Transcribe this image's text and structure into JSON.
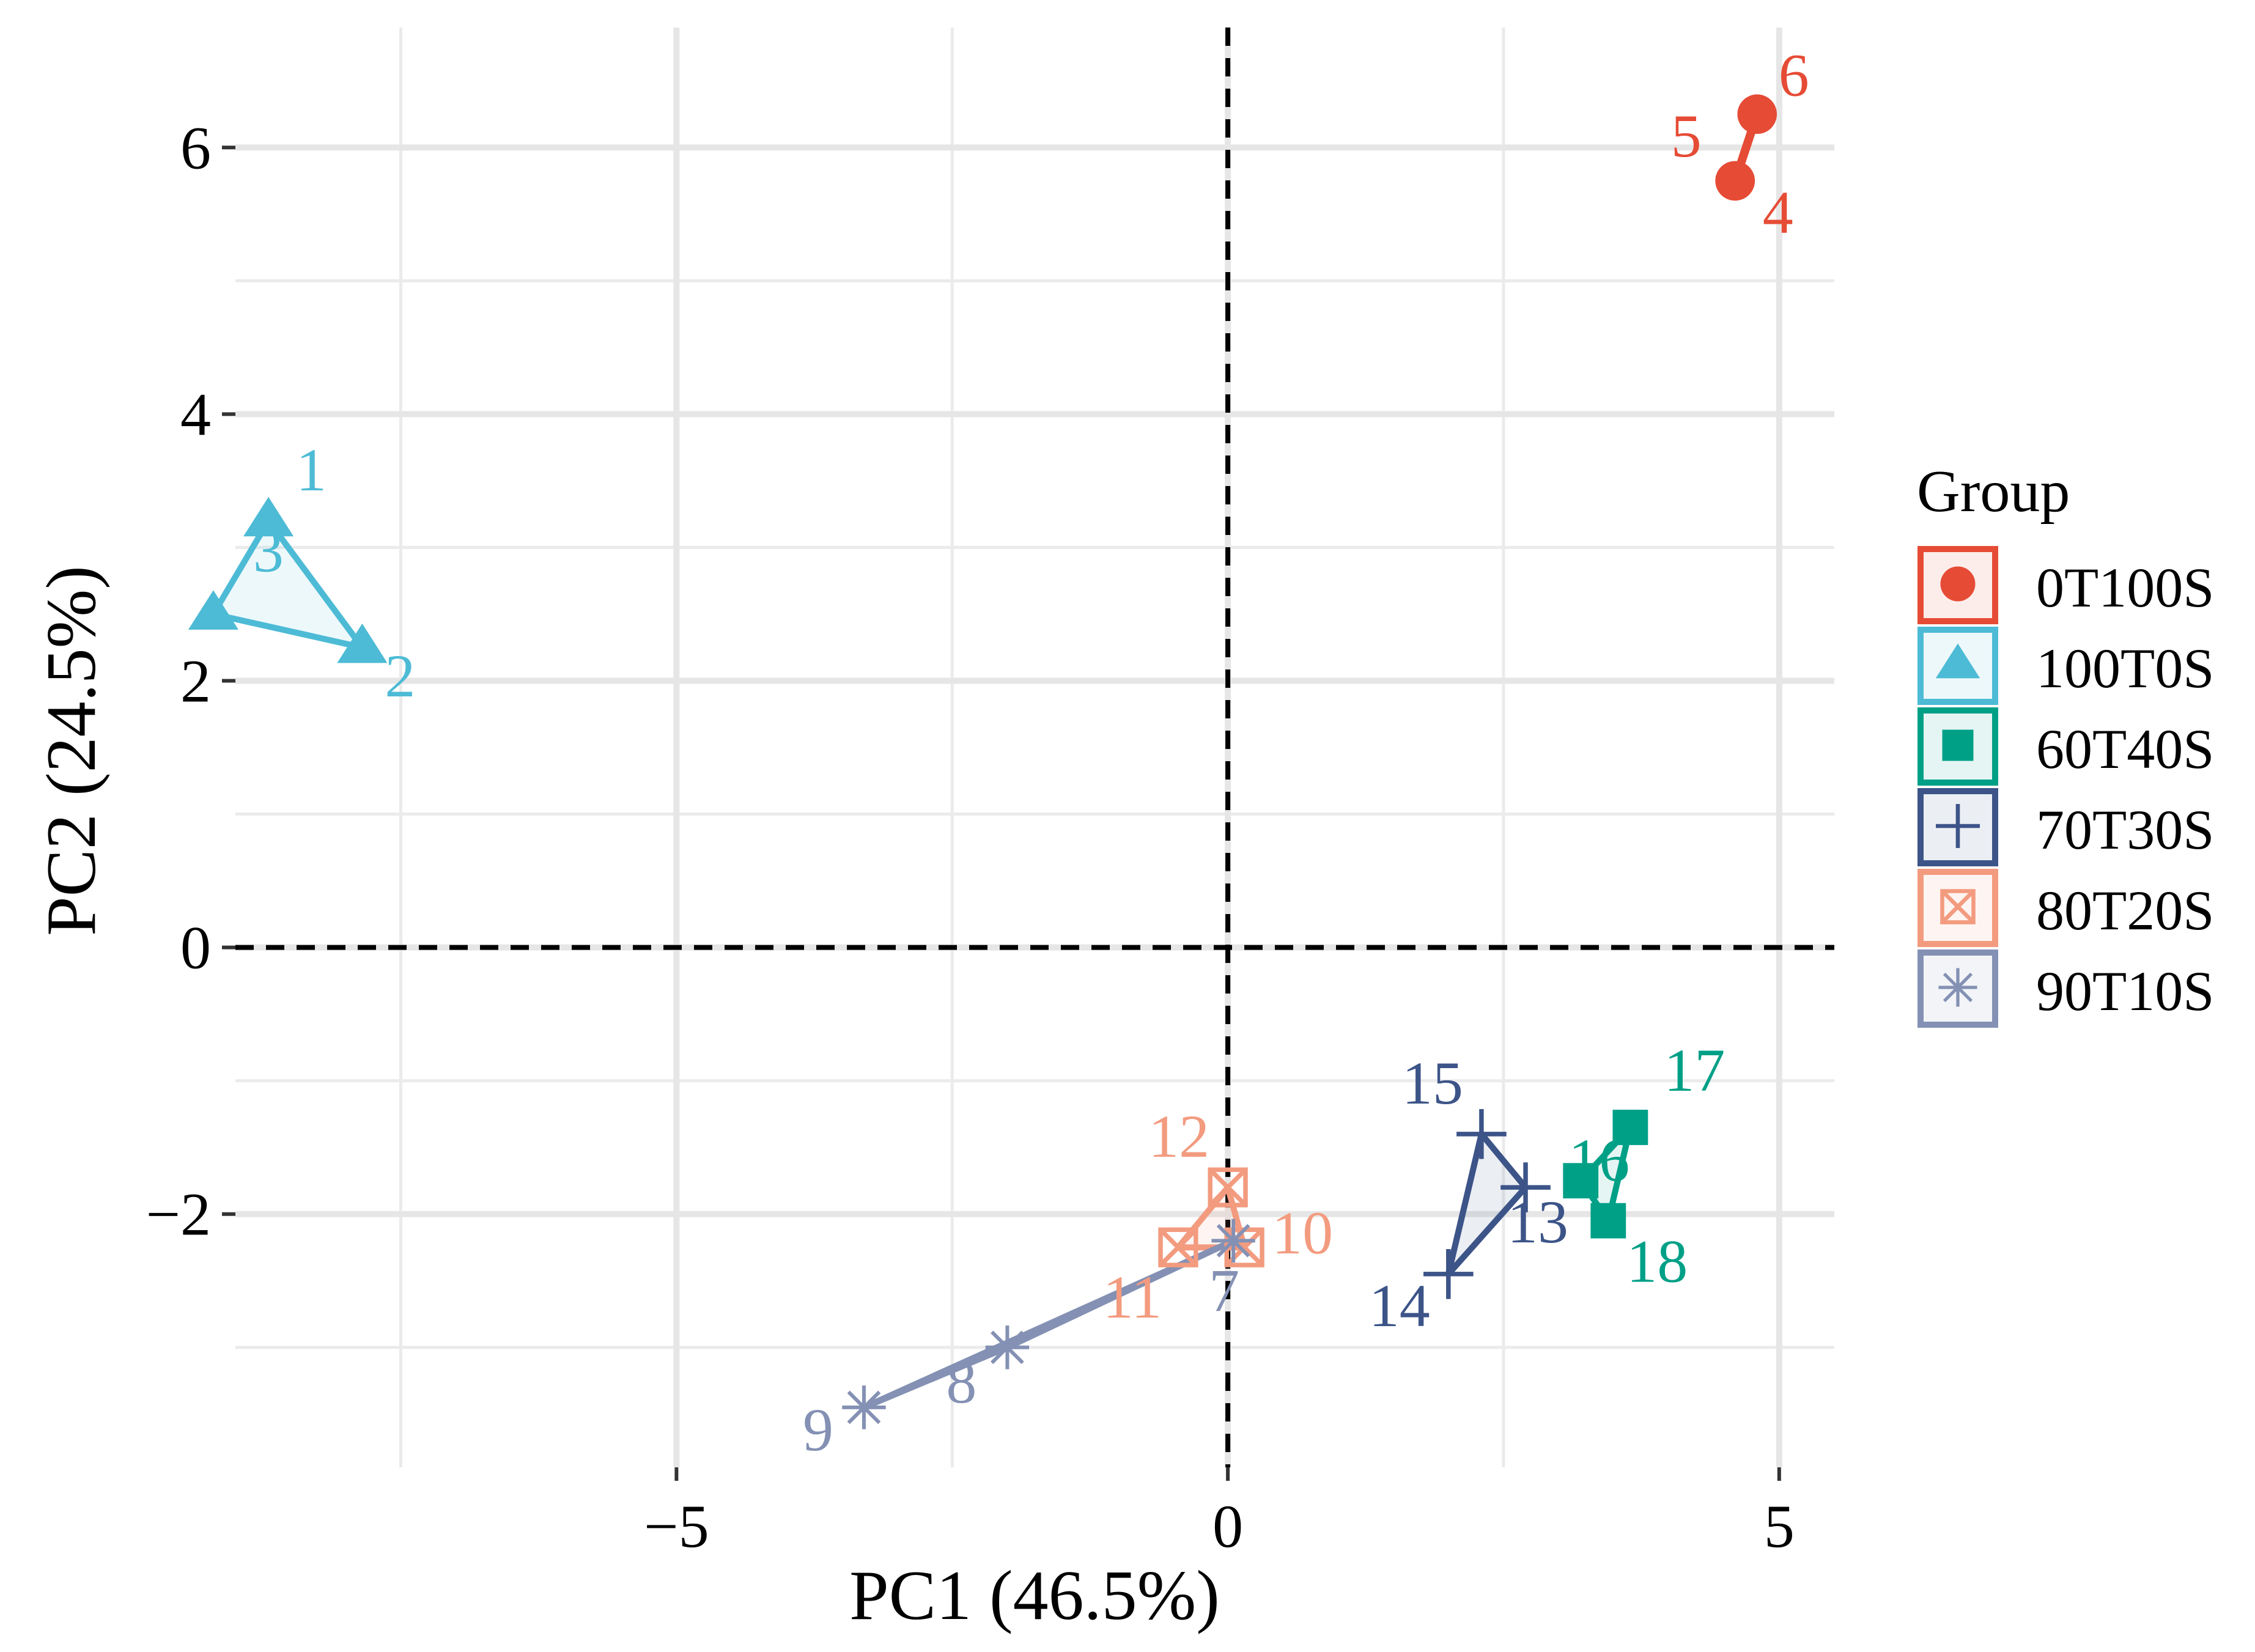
{
  "chart_data": {
    "type": "scatter",
    "title": "",
    "xlabel": "PC1 (46.5%)",
    "ylabel": "PC2 (24.5%)",
    "xlim": [
      -9.0,
      5.5
    ],
    "ylim": [
      -3.9,
      6.9
    ],
    "x_major_ticks": [
      -5,
      0,
      5
    ],
    "x_minor_grid": [
      -7.5,
      -2.5,
      2.5
    ],
    "y_major_ticks": [
      -2,
      0,
      2,
      4,
      6
    ],
    "y_minor_grid": [
      -3,
      -1,
      1,
      3,
      5
    ],
    "reference_lines": {
      "x": 0,
      "y": 0,
      "style": "dashed"
    },
    "legend": {
      "title": "Group",
      "position": "right"
    },
    "groups": [
      {
        "name": "0T100S",
        "color": "#E64B35",
        "marker": "circle",
        "hull": "segment",
        "points": [
          {
            "label": "4",
            "x": 4.6,
            "y": 5.75
          },
          {
            "label": "5",
            "x": 4.6,
            "y": 5.75
          },
          {
            "label": "6",
            "x": 4.8,
            "y": 6.25
          }
        ]
      },
      {
        "name": "100T0S",
        "color": "#4DBBD5",
        "marker": "triangle",
        "hull": "polygon",
        "points": [
          {
            "label": "1",
            "x": -8.7,
            "y": 3.2
          },
          {
            "label": "2",
            "x": -7.85,
            "y": 2.25
          },
          {
            "label": "3",
            "x": -9.2,
            "y": 2.5
          }
        ]
      },
      {
        "name": "60T40S",
        "color": "#00A087",
        "marker": "square",
        "hull": "polygon",
        "points": [
          {
            "label": "16",
            "x": 3.2,
            "y": -1.75
          },
          {
            "label": "17",
            "x": 3.65,
            "y": -1.35
          },
          {
            "label": "18",
            "x": 3.45,
            "y": -2.05
          }
        ]
      },
      {
        "name": "70T30S",
        "color": "#3C5488",
        "marker": "plus",
        "hull": "polygon",
        "points": [
          {
            "label": "13",
            "x": 2.7,
            "y": -1.8
          },
          {
            "label": "14",
            "x": 2.0,
            "y": -2.45
          },
          {
            "label": "15",
            "x": 2.3,
            "y": -1.4
          }
        ]
      },
      {
        "name": "80T20S",
        "color": "#F39B7F",
        "marker": "boxcross",
        "hull": "polygon",
        "points": [
          {
            "label": "10",
            "x": 0.15,
            "y": -2.25
          },
          {
            "label": "11",
            "x": -0.45,
            "y": -2.25
          },
          {
            "label": "12",
            "x": 0.0,
            "y": -1.8
          }
        ]
      },
      {
        "name": "90T10S",
        "color": "#8491B4",
        "marker": "asterisk",
        "hull": "polygon",
        "points": [
          {
            "label": "7",
            "x": 0.05,
            "y": -2.2
          },
          {
            "label": "8",
            "x": -2.0,
            "y": -3.0
          },
          {
            "label": "9",
            "x": -3.3,
            "y": -3.45
          }
        ]
      }
    ]
  }
}
